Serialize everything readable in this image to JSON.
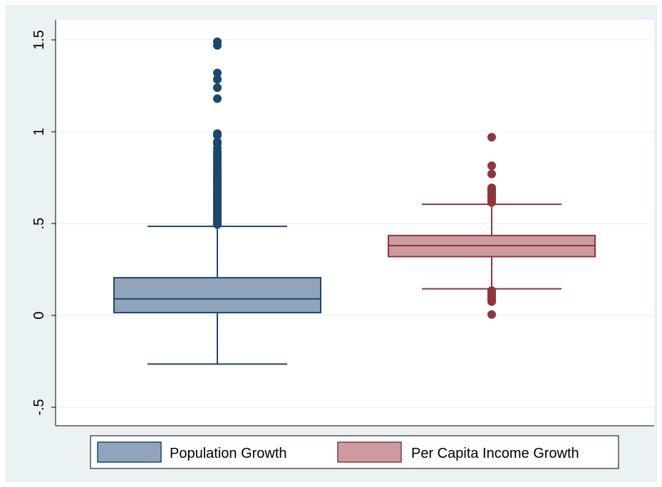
{
  "chart_data": {
    "type": "box",
    "title": "",
    "xlabel": "",
    "ylabel": "",
    "ylim": [
      -0.5,
      1.5
    ],
    "y_ticks": [
      {
        "value": -0.5,
        "label": "-.5"
      },
      {
        "value": 0,
        "label": "0"
      },
      {
        "value": 0.5,
        "label": ".5"
      },
      {
        "value": 1,
        "label": "1"
      },
      {
        "value": 1.5,
        "label": "1.5"
      }
    ],
    "grid": true,
    "legend_position": "bottom",
    "series": [
      {
        "name": "Population Growth",
        "fill_color": "#90a4bc",
        "line_color": "#1a476f",
        "whisker_low": -0.265,
        "q1": 0.015,
        "median": 0.09,
        "q3": 0.205,
        "whisker_high": 0.485,
        "outliers": [
          0.495,
          0.505,
          0.515,
          0.525,
          0.535,
          0.545,
          0.555,
          0.565,
          0.575,
          0.585,
          0.595,
          0.605,
          0.615,
          0.625,
          0.635,
          0.645,
          0.655,
          0.665,
          0.675,
          0.685,
          0.695,
          0.705,
          0.715,
          0.725,
          0.735,
          0.745,
          0.755,
          0.765,
          0.775,
          0.79,
          0.805,
          0.82,
          0.835,
          0.85,
          0.865,
          0.875,
          0.89,
          0.91,
          0.935,
          0.945,
          0.98,
          0.99,
          1.18,
          1.24,
          1.285,
          1.32,
          1.47,
          1.49
        ]
      },
      {
        "name": "Per Capita Income Growth",
        "fill_color": "#cc9b9f",
        "line_color": "#90353b",
        "whisker_low": 0.145,
        "q1": 0.32,
        "median": 0.38,
        "q3": 0.435,
        "whisker_high": 0.605,
        "outliers": [
          0.005,
          0.075,
          0.085,
          0.095,
          0.105,
          0.115,
          0.125,
          0.135,
          0.615,
          0.625,
          0.635,
          0.645,
          0.655,
          0.665,
          0.675,
          0.685,
          0.695,
          0.77,
          0.815,
          0.97
        ]
      }
    ]
  },
  "legend": {
    "items": [
      {
        "label": "Population Growth"
      },
      {
        "label": "Per Capita Income Growth"
      }
    ]
  }
}
